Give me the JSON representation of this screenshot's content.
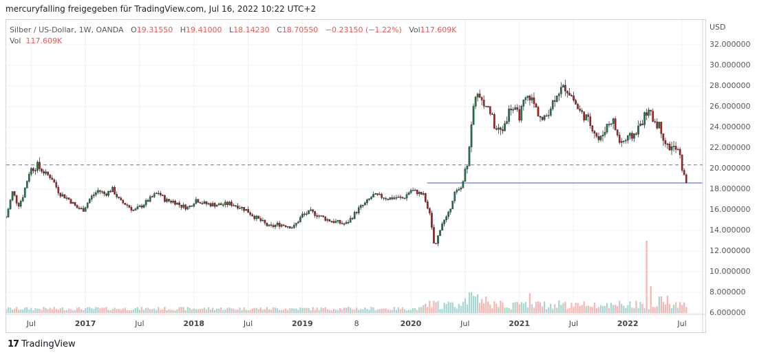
{
  "header": {
    "text": "mercuryfalling freigegeben für TradingView.com, Jul 16, 2022 10:22 UTC+2"
  },
  "legend": {
    "symbol": "Silber / US-Dollar, 1W, OANDA",
    "open_label": "O",
    "open": "19.31550",
    "high_label": "H",
    "high": "19.41000",
    "low_label": "L",
    "low": "18.14230",
    "close_label": "C",
    "close": "18.70550",
    "change": "−0.23150 (−1.22%)",
    "vol_label": "Vol",
    "vol": "117.609K",
    "vol_row_label": "Vol",
    "vol_row_value": "117.609K"
  },
  "footer": {
    "brand_mark": "17",
    "brand_text": "TradingView"
  },
  "colors": {
    "up": "#26a69a",
    "down": "#ef5350",
    "candle_up": "#1f7a4a",
    "candle_down": "#b71c1c",
    "dashed_line": "#5b6bbf",
    "solid_line": "#7b8cf0",
    "grid": "#eef0f3"
  },
  "chart_data": {
    "type": "candlestick",
    "currency_label": "USD",
    "y_ticks": [
      "32.000000",
      "30.000000",
      "28.000000",
      "26.000000",
      "24.000000",
      "22.000000",
      "20.000000",
      "18.000000",
      "16.000000",
      "14.000000",
      "12.000000",
      "10.000000",
      "8.000000",
      "6.000000"
    ],
    "ylim": [
      6,
      33
    ],
    "x_ticks": [
      "Jul",
      "2017",
      "Jul",
      "2018",
      "Jul",
      "2019",
      "8",
      "2020",
      "Jul",
      "2021",
      "Jul",
      "2022",
      "Jul"
    ],
    "x_tick_years": [
      2016.5,
      2017.0,
      2017.5,
      2018.0,
      2018.5,
      2019.0,
      2019.5,
      2020.0,
      2020.5,
      2021.0,
      2021.5,
      2022.0,
      2022.5
    ],
    "xlim": [
      2016.27,
      2022.69
    ],
    "horizontal_lines": [
      {
        "style": "dashed",
        "value": 20.35
      },
      {
        "style": "solid",
        "value": 18.6,
        "from": 2020.15
      }
    ],
    "price_path": [
      [
        2016.27,
        15.3
      ],
      [
        2016.33,
        17.8
      ],
      [
        2016.38,
        16.4
      ],
      [
        2016.42,
        17.2
      ],
      [
        2016.49,
        19.9
      ],
      [
        2016.55,
        20.3
      ],
      [
        2016.62,
        19.6
      ],
      [
        2016.69,
        19.1
      ],
      [
        2016.76,
        17.6
      ],
      [
        2016.85,
        17.0
      ],
      [
        2016.92,
        16.2
      ],
      [
        2016.98,
        16.0
      ],
      [
        2017.05,
        17.2
      ],
      [
        2017.12,
        17.9
      ],
      [
        2017.18,
        17.5
      ],
      [
        2017.25,
        18.0
      ],
      [
        2017.32,
        16.8
      ],
      [
        2017.38,
        16.5
      ],
      [
        2017.45,
        15.9
      ],
      [
        2017.52,
        16.4
      ],
      [
        2017.6,
        17.1
      ],
      [
        2017.67,
        17.7
      ],
      [
        2017.74,
        16.9
      ],
      [
        2017.82,
        16.8
      ],
      [
        2017.88,
        16.4
      ],
      [
        2017.95,
        16.2
      ],
      [
        2018.02,
        17.0
      ],
      [
        2018.1,
        16.6
      ],
      [
        2018.18,
        16.5
      ],
      [
        2018.26,
        16.5
      ],
      [
        2018.33,
        16.6
      ],
      [
        2018.4,
        16.4
      ],
      [
        2018.48,
        16.0
      ],
      [
        2018.55,
        15.4
      ],
      [
        2018.62,
        14.9
      ],
      [
        2018.7,
        14.3
      ],
      [
        2018.78,
        14.6
      ],
      [
        2018.85,
        14.5
      ],
      [
        2018.92,
        14.3
      ],
      [
        2019.0,
        15.5
      ],
      [
        2019.08,
        15.8
      ],
      [
        2019.16,
        15.4
      ],
      [
        2019.24,
        15.0
      ],
      [
        2019.32,
        14.8
      ],
      [
        2019.4,
        14.6
      ],
      [
        2019.45,
        15.2
      ],
      [
        2019.52,
        16.1
      ],
      [
        2019.58,
        16.6
      ],
      [
        2019.65,
        17.4
      ],
      [
        2019.72,
        17.3
      ],
      [
        2019.79,
        17.1
      ],
      [
        2019.86,
        17.2
      ],
      [
        2019.93,
        17.1
      ],
      [
        2020.0,
        17.9
      ],
      [
        2020.06,
        17.7
      ],
      [
        2020.12,
        17.4
      ],
      [
        2020.17,
        15.8
      ],
      [
        2020.22,
        12.2
      ],
      [
        2020.28,
        14.6
      ],
      [
        2020.34,
        15.3
      ],
      [
        2020.4,
        17.6
      ],
      [
        2020.46,
        18.0
      ],
      [
        2020.52,
        20.6
      ],
      [
        2020.56,
        24.1
      ],
      [
        2020.6,
        27.5
      ],
      [
        2020.65,
        26.3
      ],
      [
        2020.72,
        25.9
      ],
      [
        2020.78,
        23.8
      ],
      [
        2020.84,
        23.6
      ],
      [
        2020.92,
        26.0
      ],
      [
        2021.0,
        25.1
      ],
      [
        2021.05,
        26.6
      ],
      [
        2021.1,
        27.0
      ],
      [
        2021.15,
        25.9
      ],
      [
        2021.22,
        24.5
      ],
      [
        2021.28,
        25.8
      ],
      [
        2021.35,
        27.4
      ],
      [
        2021.42,
        27.9
      ],
      [
        2021.48,
        27.1
      ],
      [
        2021.55,
        25.6
      ],
      [
        2021.62,
        24.9
      ],
      [
        2021.68,
        23.9
      ],
      [
        2021.74,
        22.6
      ],
      [
        2021.8,
        24.1
      ],
      [
        2021.86,
        24.8
      ],
      [
        2021.92,
        22.6
      ],
      [
        2021.98,
        22.7
      ],
      [
        2022.05,
        23.2
      ],
      [
        2022.12,
        24.3
      ],
      [
        2022.18,
        25.6
      ],
      [
        2022.24,
        24.7
      ],
      [
        2022.3,
        24.0
      ],
      [
        2022.36,
        22.1
      ],
      [
        2022.42,
        22.0
      ],
      [
        2022.47,
        21.6
      ],
      [
        2022.51,
        19.5
      ],
      [
        2022.54,
        18.7
      ]
    ],
    "volume_peaks": [
      [
        2020.55,
        8.0
      ],
      [
        2020.62,
        7.8
      ],
      [
        2021.1,
        7.9
      ],
      [
        2022.18,
        13.0
      ],
      [
        2022.21,
        8.6
      ],
      [
        2022.3,
        7.6
      ],
      [
        2022.36,
        7.7
      ]
    ]
  }
}
